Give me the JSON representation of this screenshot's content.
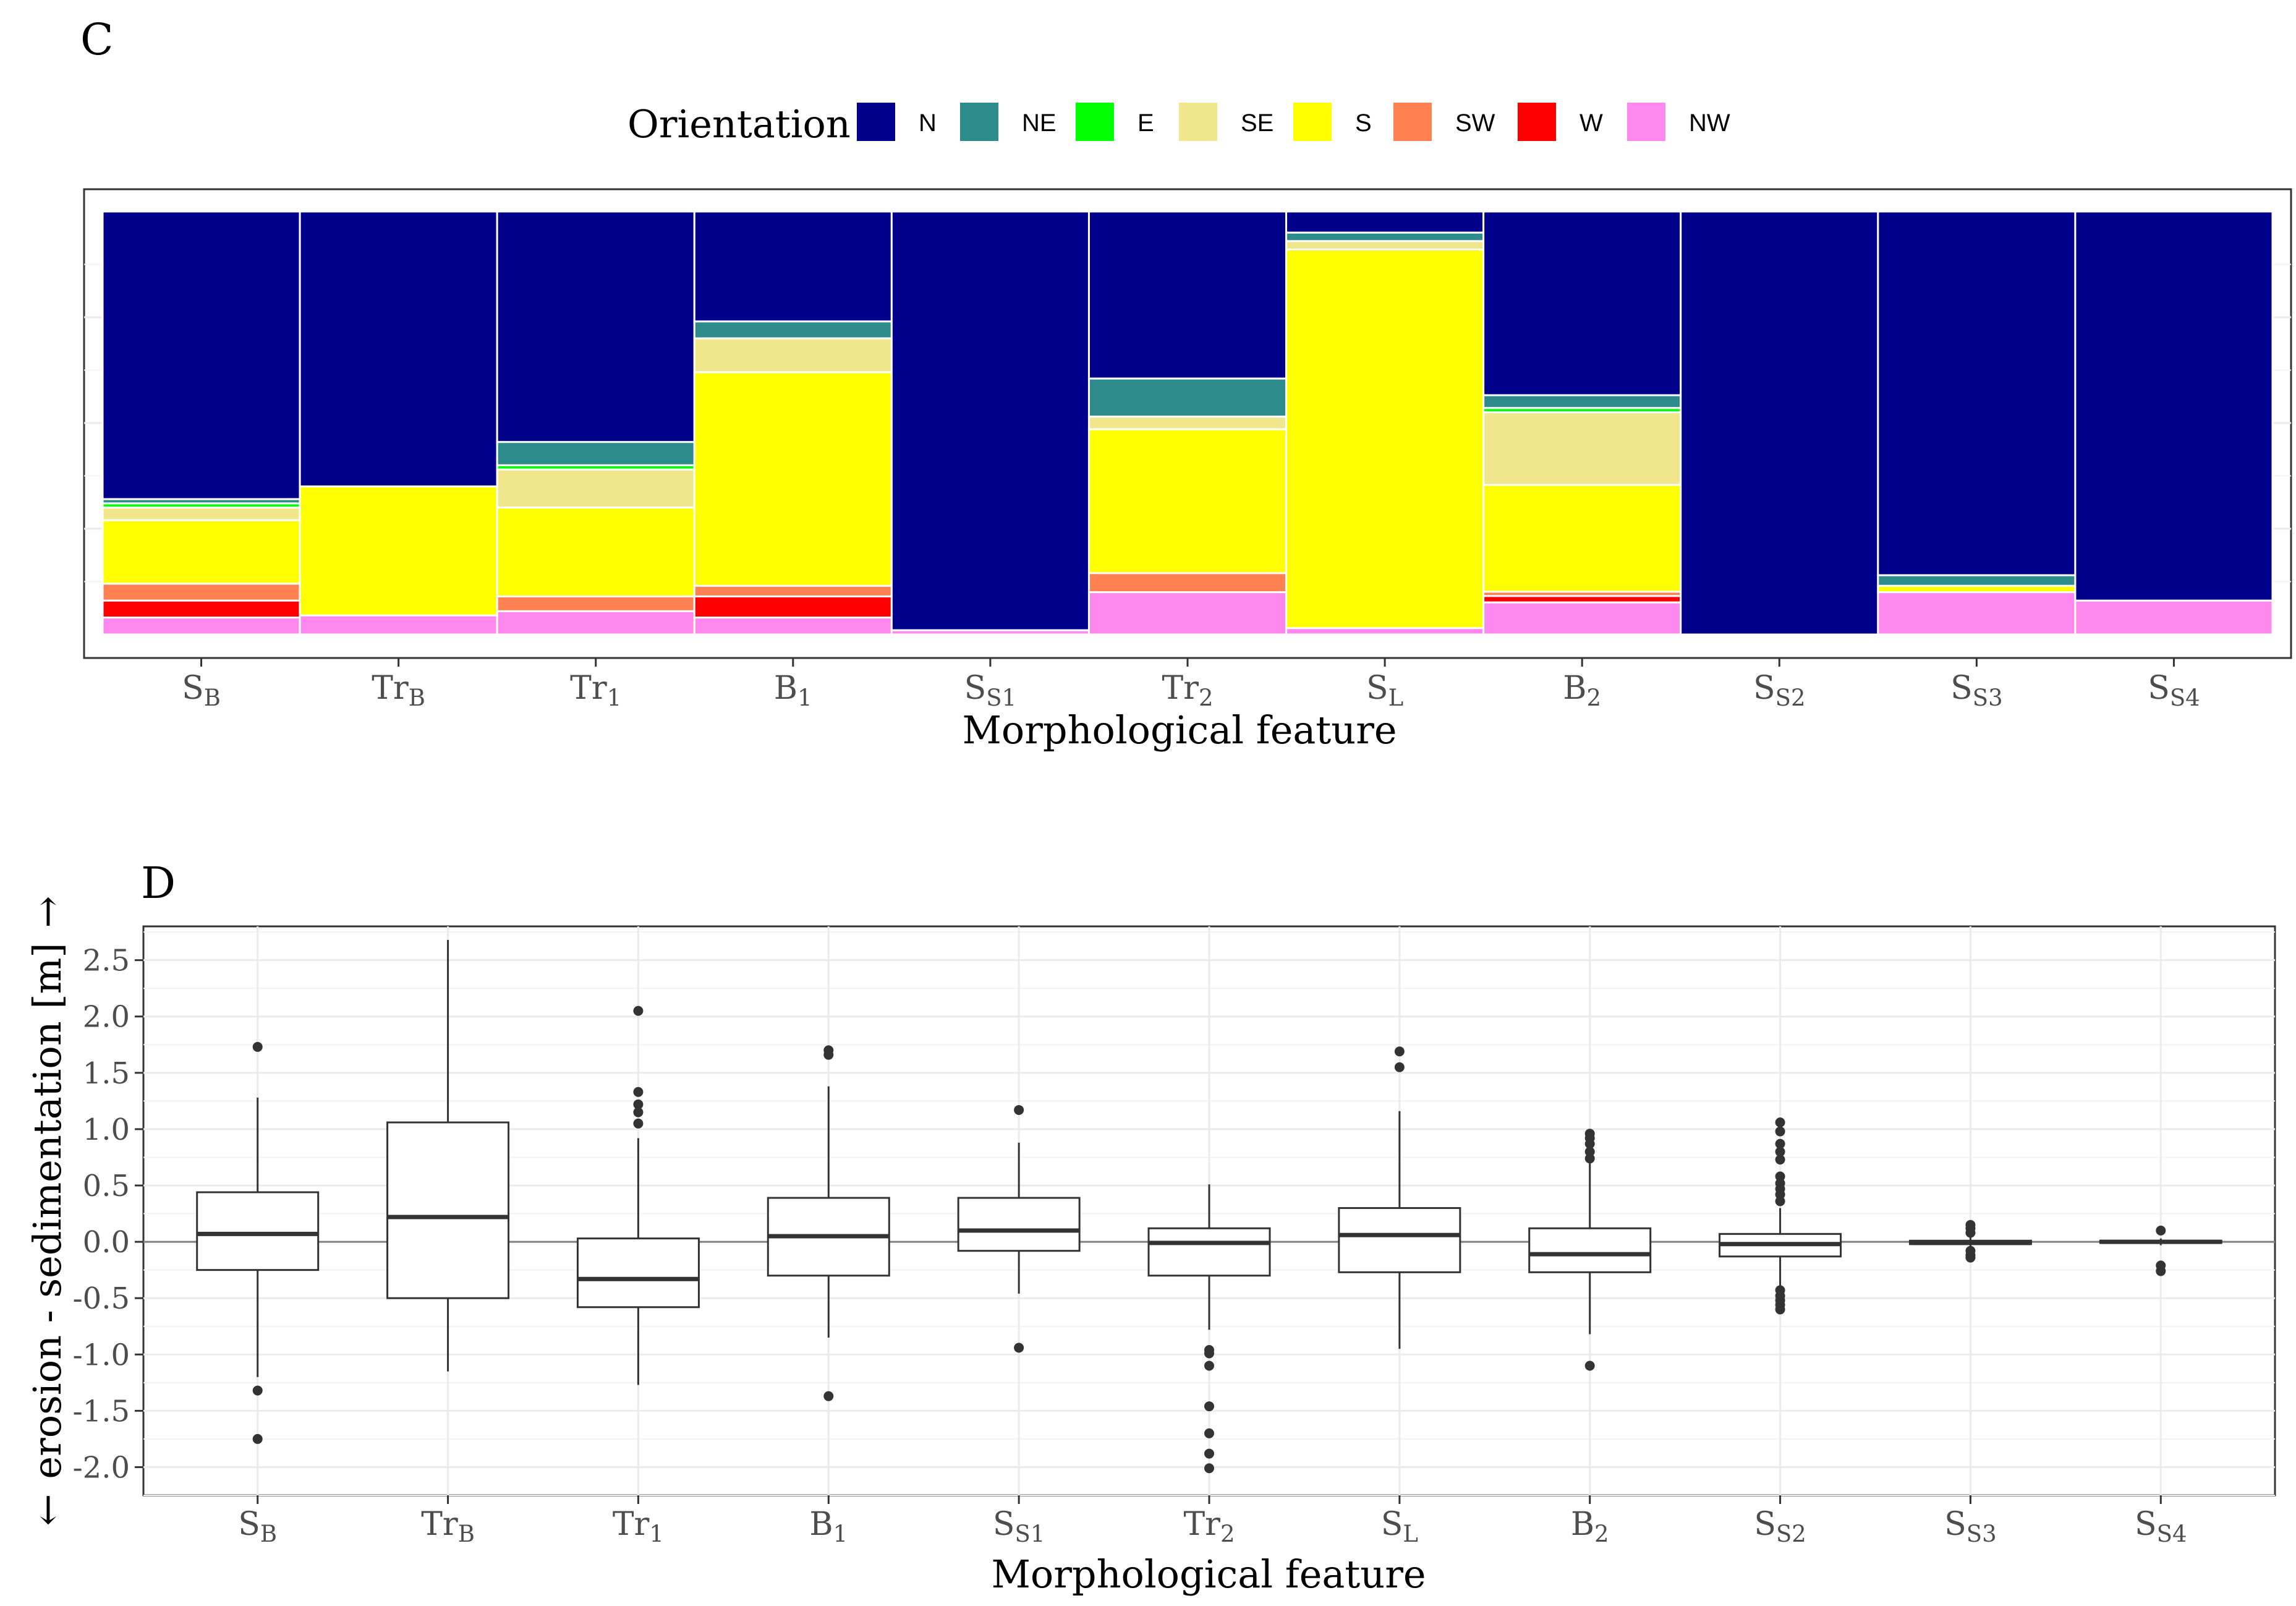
{
  "chart_data": [
    {
      "type": "bar",
      "stacked": true,
      "normalized": true,
      "panel_label": "C",
      "xlabel": "Morphological feature",
      "ylabel": "",
      "ylim": [
        0,
        1
      ],
      "legend_title": "Orientation",
      "legend_position": "top",
      "categories": [
        {
          "base": "S",
          "sub": "B"
        },
        {
          "base": "Tr",
          "sub": "B"
        },
        {
          "base": "Tr",
          "sub": "1"
        },
        {
          "base": "B",
          "sub": "1"
        },
        {
          "base": "S",
          "sub": "S1"
        },
        {
          "base": "Tr",
          "sub": "2"
        },
        {
          "base": "S",
          "sub": "L"
        },
        {
          "base": "B",
          "sub": "2"
        },
        {
          "base": "S",
          "sub": "S2"
        },
        {
          "base": "S",
          "sub": "S3"
        },
        {
          "base": "S",
          "sub": "S4"
        }
      ],
      "column_widths": [
        1,
        1,
        1,
        1,
        1,
        1,
        1,
        1,
        1,
        1,
        1
      ],
      "series": [
        {
          "name": "N",
          "color": "#00008B",
          "values": [
            0.68,
            0.65,
            0.545,
            0.26,
            0.99,
            0.395,
            0.05,
            0.43,
            1.0,
            0.86,
            0.92
          ]
        },
        {
          "name": "NE",
          "color": "#2E8B8B",
          "values": [
            0.01,
            0.0,
            0.055,
            0.04,
            0.0,
            0.09,
            0.02,
            0.03,
            0.0,
            0.025,
            0.0
          ]
        },
        {
          "name": "E",
          "color": "#00FF00",
          "values": [
            0.01,
            0.0,
            0.01,
            0.0,
            0.0,
            0.0,
            0.0,
            0.01,
            0.0,
            0.0,
            0.0
          ]
        },
        {
          "name": "SE",
          "color": "#F0E68C",
          "values": [
            0.03,
            0.0,
            0.09,
            0.08,
            0.0,
            0.03,
            0.02,
            0.17,
            0.0,
            0.0,
            0.0
          ]
        },
        {
          "name": "S",
          "color": "#FFFF00",
          "values": [
            0.15,
            0.305,
            0.21,
            0.505,
            0.0,
            0.34,
            0.895,
            0.25,
            0.0,
            0.015,
            0.0
          ]
        },
        {
          "name": "SW",
          "color": "#FF8050",
          "values": [
            0.04,
            0.0,
            0.035,
            0.025,
            0.0,
            0.045,
            0.0,
            0.01,
            0.0,
            0.0,
            0.0
          ]
        },
        {
          "name": "W",
          "color": "#FF0000",
          "values": [
            0.04,
            0.0,
            0.0,
            0.05,
            0.0,
            0.0,
            0.0,
            0.015,
            0.0,
            0.0,
            0.0
          ]
        },
        {
          "name": "NW",
          "color": "#FF88EE",
          "values": [
            0.04,
            0.045,
            0.055,
            0.04,
            0.01,
            0.1,
            0.015,
            0.075,
            0.0,
            0.1,
            0.08
          ]
        }
      ]
    },
    {
      "type": "boxplot",
      "panel_label": "D",
      "xlabel": "Morphological feature",
      "ylabel": "erosion - sedimentation [m]",
      "ylabel_arrow_up": "→",
      "ylabel_arrow_down": "←",
      "ylim": [
        -2.25,
        2.8
      ],
      "yticks": [
        -2.0,
        -1.5,
        -1.0,
        -0.5,
        0.0,
        0.5,
        1.0,
        1.5,
        2.0,
        2.5
      ],
      "ytick_labels": [
        "-2.0",
        "-1.5",
        "-1.0",
        "-0.5",
        "0.0",
        "0.5",
        "1.0",
        "1.5",
        "2.0",
        "2.5"
      ],
      "reference_line": 0,
      "categories": [
        {
          "base": "S",
          "sub": "B"
        },
        {
          "base": "Tr",
          "sub": "B"
        },
        {
          "base": "Tr",
          "sub": "1"
        },
        {
          "base": "B",
          "sub": "1"
        },
        {
          "base": "S",
          "sub": "S1"
        },
        {
          "base": "Tr",
          "sub": "2"
        },
        {
          "base": "S",
          "sub": "L"
        },
        {
          "base": "B",
          "sub": "2"
        },
        {
          "base": "S",
          "sub": "S2"
        },
        {
          "base": "S",
          "sub": "S3"
        },
        {
          "base": "S",
          "sub": "S4"
        }
      ],
      "boxes": [
        {
          "whisker_low": -1.2,
          "q1": -0.25,
          "median": 0.07,
          "q3": 0.44,
          "whisker_high": 1.28,
          "outliers": [
            1.73,
            -1.32,
            -1.75
          ]
        },
        {
          "whisker_low": -1.15,
          "q1": -0.5,
          "median": 0.22,
          "q3": 1.06,
          "whisker_high": 2.68,
          "outliers": []
        },
        {
          "whisker_low": -1.27,
          "q1": -0.58,
          "median": -0.33,
          "q3": 0.03,
          "whisker_high": 0.92,
          "outliers": [
            2.05,
            1.33,
            1.22,
            1.15,
            1.05
          ]
        },
        {
          "whisker_low": -0.85,
          "q1": -0.3,
          "median": 0.05,
          "q3": 0.39,
          "whisker_high": 1.38,
          "outliers": [
            1.7,
            1.66,
            -1.37
          ]
        },
        {
          "whisker_low": -0.46,
          "q1": -0.08,
          "median": 0.1,
          "q3": 0.39,
          "whisker_high": 0.88,
          "outliers": [
            1.17,
            -0.94
          ]
        },
        {
          "whisker_low": -0.78,
          "q1": -0.3,
          "median": -0.01,
          "q3": 0.12,
          "whisker_high": 0.51,
          "outliers": [
            -0.96,
            -0.99,
            -1.1,
            -1.46,
            -1.7,
            -1.88,
            -2.01
          ]
        },
        {
          "whisker_low": -0.95,
          "q1": -0.27,
          "median": 0.06,
          "q3": 0.3,
          "whisker_high": 1.16,
          "outliers": [
            1.69,
            1.55
          ]
        },
        {
          "whisker_low": -0.82,
          "q1": -0.27,
          "median": -0.11,
          "q3": 0.12,
          "whisker_high": 0.7,
          "outliers": [
            0.96,
            0.92,
            0.87,
            0.8,
            0.74,
            -1.1
          ]
        },
        {
          "whisker_low": -0.4,
          "q1": -0.13,
          "median": -0.02,
          "q3": 0.07,
          "whisker_high": 0.3,
          "outliers": [
            1.06,
            0.98,
            0.87,
            0.8,
            0.73,
            0.58,
            0.52,
            0.47,
            0.42,
            0.36,
            -0.43,
            -0.48,
            -0.52,
            -0.56,
            -0.6
          ]
        },
        {
          "whisker_low": -0.04,
          "q1": -0.02,
          "median": -0.01,
          "q3": 0.01,
          "whisker_high": 0.04,
          "outliers": [
            0.15,
            0.12,
            0.08,
            -0.08,
            -0.12,
            -0.14
          ]
        },
        {
          "whisker_low": -0.03,
          "q1": -0.01,
          "median": 0.0,
          "q3": 0.01,
          "whisker_high": 0.03,
          "outliers": [
            0.1,
            -0.21,
            -0.26
          ]
        }
      ]
    }
  ]
}
